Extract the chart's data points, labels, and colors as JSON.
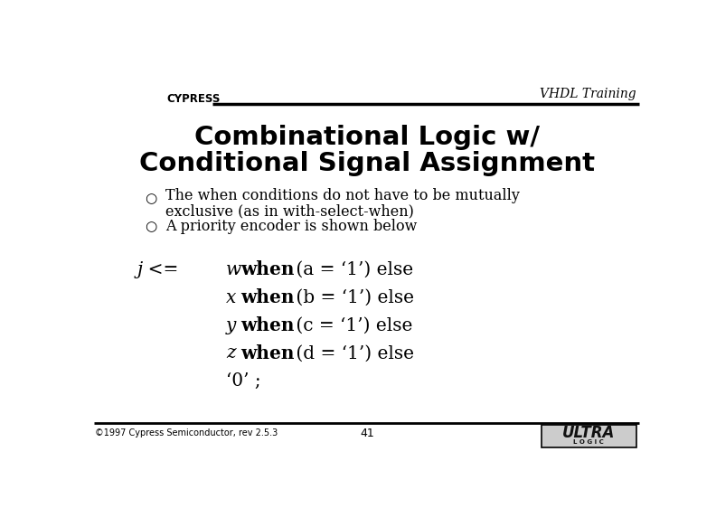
{
  "title_line1": "Combinational Logic w/",
  "title_line2": "Conditional Signal Assignment",
  "header_right": "VHDL Training",
  "bullet1_line1": "The when conditions do not have to be mutually",
  "bullet1_line2": "exclusive (as in with-select-when)",
  "bullet2": "A priority encoder is shown below",
  "footer_left": "©1997 Cypress Semiconductor, rev 2.5.3",
  "footer_center": "41",
  "bg_color": "#ffffff",
  "text_color": "#000000",
  "code_vars": [
    "w",
    "x",
    "y",
    "z"
  ],
  "code_conds": [
    "a",
    "b",
    "c",
    "d"
  ],
  "code_line5": "‘0’ ;",
  "lquote": "‘",
  "rquote": "’"
}
